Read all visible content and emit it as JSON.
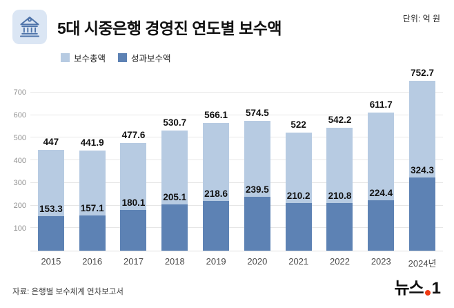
{
  "header": {
    "title": "5대 시중은행 경영진 연도별 보수액",
    "unit": "단위: 억 원"
  },
  "chart_data": {
    "type": "bar",
    "title": "5대 시중은행 경영진 연도별 보수액",
    "categories": [
      "2015",
      "2016",
      "2017",
      "2018",
      "2019",
      "2020",
      "2021",
      "2022",
      "2023",
      "2024년"
    ],
    "series": [
      {
        "name": "보수총액",
        "color": "#b7cbe2",
        "values": [
          447,
          441.9,
          477.6,
          530.7,
          566.1,
          574.5,
          522,
          542.2,
          611.7,
          752.7
        ]
      },
      {
        "name": "성과보수액",
        "color": "#5d82b4",
        "values": [
          153.3,
          157.1,
          180.1,
          205.1,
          218.6,
          239.5,
          210.2,
          210.8,
          224.4,
          324.3
        ]
      }
    ],
    "xlabel": "",
    "ylabel": "억 원",
    "ylim": [
      0,
      800
    ],
    "yticks": [
      100,
      200,
      300,
      400,
      500,
      600,
      700
    ],
    "grid": true,
    "legend_position": "top-left",
    "bar_style": "overlaid (성과보수액 drawn over lower part of 보수총액)"
  },
  "footer": {
    "source": "자료: 은행별 보수체계 연차보고서",
    "logo_text_1": "뉴스",
    "logo_text_2": "1"
  }
}
